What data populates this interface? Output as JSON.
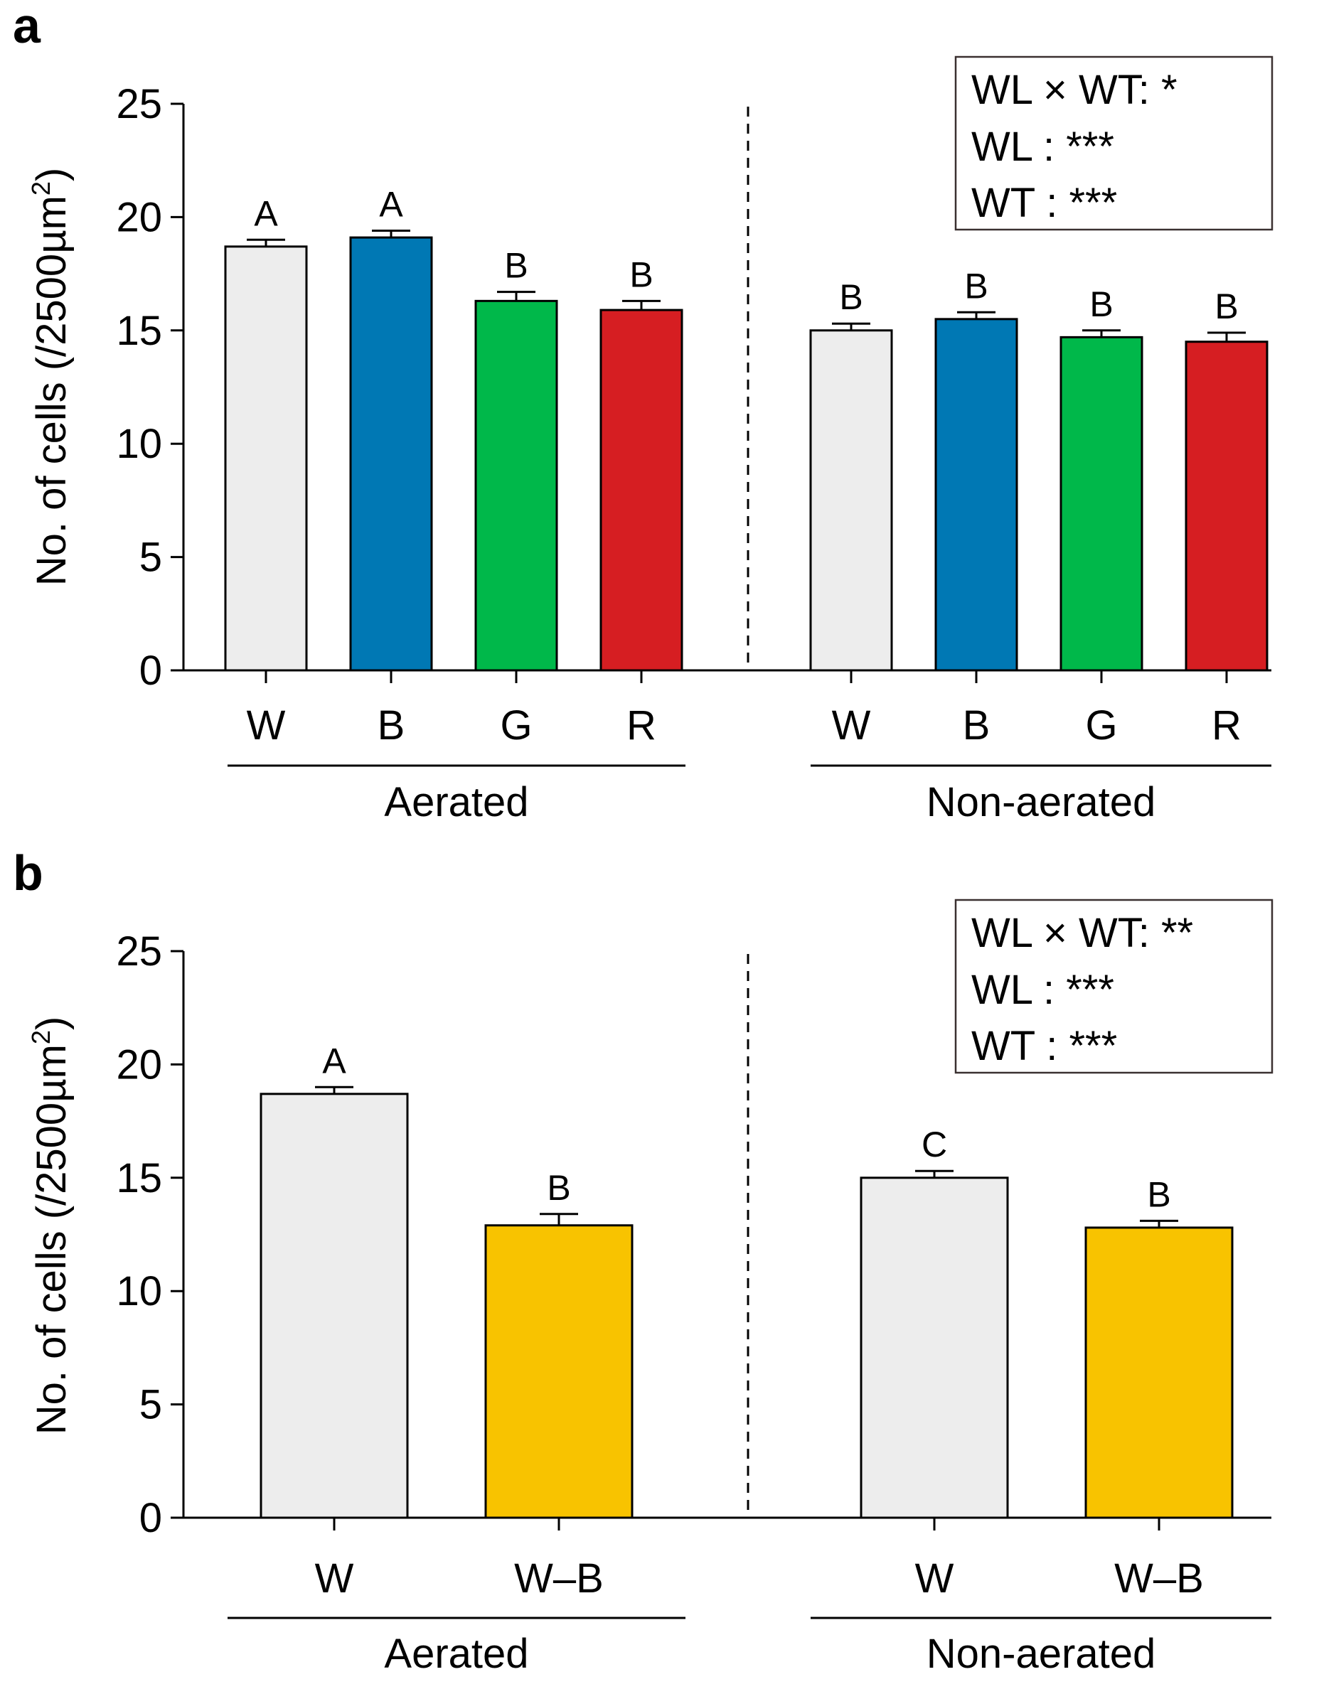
{
  "colors": {
    "W": "#ededed",
    "B": "#0078b4",
    "G": "#00b84a",
    "R": "#d61e22",
    "W–B": "#f8c300",
    "axis": "#000000"
  },
  "chart_data": [
    {
      "type": "bar",
      "panel": "a",
      "title": "",
      "xlabel": "",
      "ylabel": "No. of cells (/2500µm²)",
      "ylabel_main": "No. of cells (/2500µm",
      "ylabel_sup": "2",
      "ylabel_end": ")",
      "ylim": [
        0,
        25
      ],
      "yticks": [
        0,
        5,
        10,
        15,
        20,
        25
      ],
      "grid": false,
      "groups": [
        {
          "label": "Aerated",
          "categories": [
            "W",
            "B",
            "G",
            "R"
          ],
          "values": [
            18.7,
            19.1,
            16.3,
            15.9
          ],
          "errors": [
            0.3,
            0.3,
            0.4,
            0.4
          ],
          "letters": [
            "A",
            "A",
            "B",
            "B"
          ]
        },
        {
          "label": "Non-aerated",
          "categories": [
            "W",
            "B",
            "G",
            "R"
          ],
          "values": [
            15.0,
            15.5,
            14.7,
            14.5
          ],
          "errors": [
            0.3,
            0.3,
            0.3,
            0.4
          ],
          "letters": [
            "B",
            "B",
            "B",
            "B"
          ]
        }
      ],
      "legend": {
        "position": "top-right",
        "lines": [
          {
            "key": "WL × WT",
            "sep": ":",
            "sig": " *"
          },
          {
            "key": "WL",
            "sep": " :",
            "sig": " ***"
          },
          {
            "key": "WT",
            "sep": " :",
            "sig": " ***"
          }
        ]
      }
    },
    {
      "type": "bar",
      "panel": "b",
      "title": "",
      "xlabel": "",
      "ylabel": "No. of cells (/2500µm²)",
      "ylabel_main": "No. of cells (/2500µm",
      "ylabel_sup": "2",
      "ylabel_end": ")",
      "ylim": [
        0,
        25
      ],
      "yticks": [
        0,
        5,
        10,
        15,
        20,
        25
      ],
      "grid": false,
      "groups": [
        {
          "label": "Aerated",
          "categories": [
            "W",
            "W–B"
          ],
          "values": [
            18.7,
            12.9
          ],
          "errors": [
            0.3,
            0.5
          ],
          "letters": [
            "A",
            "B"
          ]
        },
        {
          "label": "Non-aerated",
          "categories": [
            "W",
            "W–B"
          ],
          "values": [
            15.0,
            12.8
          ],
          "errors": [
            0.3,
            0.3
          ],
          "letters": [
            "C",
            "B"
          ]
        }
      ],
      "legend": {
        "position": "top-right",
        "lines": [
          {
            "key": "WL × WT",
            "sep": ":",
            "sig": " **"
          },
          {
            "key": "WL",
            "sep": " :",
            "sig": " ***"
          },
          {
            "key": "WT",
            "sep": " :",
            "sig": " ***"
          }
        ]
      }
    }
  ]
}
